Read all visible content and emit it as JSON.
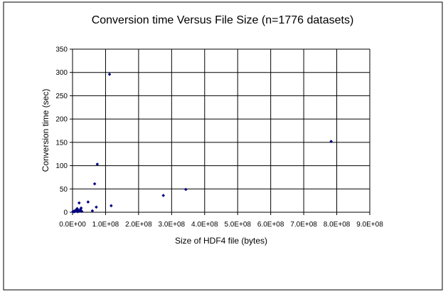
{
  "chart_data": {
    "type": "scatter",
    "title": "Conversion time Versus File Size (n=1776 datasets)",
    "xlabel": "Size of HDF4 file (bytes)",
    "ylabel": "Conversion time (sec)",
    "xlim": [
      0,
      900000000
    ],
    "ylim": [
      0,
      350
    ],
    "x_ticks": [
      0,
      100000000,
      200000000,
      300000000,
      400000000,
      500000000,
      600000000,
      700000000,
      800000000,
      900000000
    ],
    "x_tick_labels": [
      "0.0E+00",
      "1.0E+08",
      "2.0E+08",
      "3.0E+08",
      "4.0E+08",
      "5.0E+08",
      "6.0E+08",
      "7.0E+08",
      "8.0E+08",
      "9.0E+08"
    ],
    "y_ticks": [
      0,
      50,
      100,
      150,
      200,
      250,
      300,
      350
    ],
    "y_tick_labels": [
      "0",
      "50",
      "100",
      "150",
      "200",
      "250",
      "300",
      "350"
    ],
    "grid": "horizontal",
    "legend": "none",
    "marker_color": "#000080",
    "points": [
      {
        "x": 1000000,
        "y": 1
      },
      {
        "x": 3000000,
        "y": 2
      },
      {
        "x": 5000000,
        "y": 1
      },
      {
        "x": 7000000,
        "y": 3
      },
      {
        "x": 9000000,
        "y": 2
      },
      {
        "x": 11000000,
        "y": 5
      },
      {
        "x": 13000000,
        "y": 3
      },
      {
        "x": 14000000,
        "y": 8
      },
      {
        "x": 16000000,
        "y": 1
      },
      {
        "x": 18000000,
        "y": 4
      },
      {
        "x": 20000000,
        "y": 20
      },
      {
        "x": 22000000,
        "y": 3
      },
      {
        "x": 24000000,
        "y": 6
      },
      {
        "x": 26000000,
        "y": 9
      },
      {
        "x": 28000000,
        "y": 2
      },
      {
        "x": 47000000,
        "y": 22
      },
      {
        "x": 60000000,
        "y": 3
      },
      {
        "x": 67000000,
        "y": 61
      },
      {
        "x": 72000000,
        "y": 11
      },
      {
        "x": 75000000,
        "y": 103
      },
      {
        "x": 112000000,
        "y": 296
      },
      {
        "x": 117000000,
        "y": 14
      },
      {
        "x": 275000000,
        "y": 36
      },
      {
        "x": 343000000,
        "y": 49
      },
      {
        "x": 783000000,
        "y": 152
      }
    ]
  }
}
